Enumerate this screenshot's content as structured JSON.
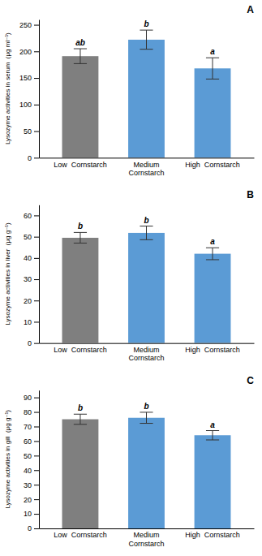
{
  "chart_data": [
    {
      "type": "bar",
      "title": "A",
      "y_label": "Lysozyme activities in serum  (μg ml⁻¹)",
      "categories": [
        "Low  Cornstarch",
        "Medium\nCornstarch",
        "High  Cornstarch"
      ],
      "values": [
        191,
        222,
        168
      ],
      "errors": [
        14,
        18,
        20
      ],
      "annotations": [
        "ab",
        "b",
        "a"
      ],
      "colors": [
        "#7F7F7F",
        "#5B9BD5",
        "#5B9BD5"
      ],
      "ylim": [
        0,
        260
      ],
      "yticks": [
        0,
        50,
        100,
        150,
        200,
        250
      ],
      "grid": false
    },
    {
      "type": "bar",
      "title": "B",
      "y_label": "Lysozyme activities in liver  (μg g⁻¹)",
      "categories": [
        "Low  Cornstarch",
        "Medium\nCornstarch",
        "High  Cornstarch"
      ],
      "values": [
        49.5,
        51.8,
        42.0
      ],
      "errors": [
        2.5,
        3.2,
        2.8
      ],
      "annotations": [
        "b",
        "b",
        "a"
      ],
      "colors": [
        "#7F7F7F",
        "#5B9BD5",
        "#5B9BD5"
      ],
      "ylim": [
        0,
        65
      ],
      "yticks": [
        0,
        10,
        20,
        30,
        40,
        50,
        60
      ],
      "grid": false
    },
    {
      "type": "bar",
      "title": "C",
      "y_label": "Lysozyme activities in gill  (μg g⁻¹)",
      "categories": [
        "Low  Cornstarch",
        "Medium\nCornstarch",
        "High  Cornstarch"
      ],
      "values": [
        75,
        76,
        64
      ],
      "errors": [
        3.5,
        3.8,
        3.2
      ],
      "annotations": [
        "b",
        "b",
        "a"
      ],
      "colors": [
        "#7F7F7F",
        "#5B9BD5",
        "#5B9BD5"
      ],
      "ylim": [
        0,
        95
      ],
      "yticks": [
        0,
        10,
        20,
        30,
        40,
        50,
        60,
        70,
        80,
        90
      ],
      "grid": false
    }
  ]
}
